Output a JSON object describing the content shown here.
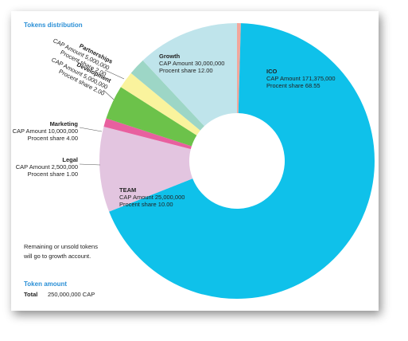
{
  "chart_data": {
    "type": "donut",
    "title": "Tokens distribution",
    "segments": [
      {
        "value": 0.45,
        "color": "#f2a79c"
      },
      {
        "name": "ICO",
        "cap": "CAP Amount 171,375,000",
        "value": 68.55,
        "value_label": "Procent share 68.55",
        "color": "#0fc1ea"
      },
      {
        "name": "TEAM",
        "cap": "CAP Amount 25,000,000",
        "value": 10,
        "value_label": "Procent share 10.00",
        "color": "#e3c5e0"
      },
      {
        "name": "Legal",
        "cap": "CAP Amount 2,500,000",
        "value": 1,
        "value_label": "Procent share 1.00",
        "color": "#e8609f"
      },
      {
        "name": "Marketing",
        "cap": "CAP Amount 10,000,000",
        "value": 4,
        "value_label": "Procent share 4.00",
        "color": "#6cc24a"
      },
      {
        "name": "Development",
        "cap": "CAP Amount 5,000,000",
        "value": 2,
        "value_label": "Procent share 2.00",
        "color": "#faf39d"
      },
      {
        "name": "Partnerships",
        "cap": "CAP Amount 5,000,000",
        "value": 2,
        "value_label": "Procent share 2.00",
        "color": "#9dd6c6"
      },
      {
        "name": "Growth",
        "cap": "CAP Amount 30,000,000",
        "value": 12,
        "value_label": "Procent share 12.00",
        "color": "#bfe4eb"
      }
    ],
    "note": [
      "Remaining or unsold tokens",
      "will go to growth account."
    ],
    "amount_title": "Token amount",
    "total_label": "Total",
    "total_value": "250,000,000 CAP"
  }
}
